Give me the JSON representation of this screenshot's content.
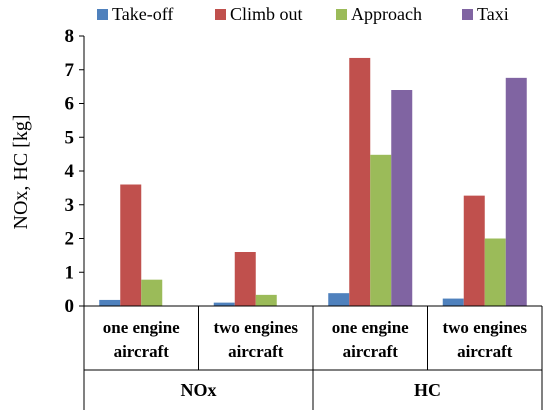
{
  "chart_data": {
    "type": "bar",
    "ylabel": "NOx, HC [kg]",
    "ylim": [
      0,
      8
    ],
    "yticks": [
      "0",
      "1",
      "2",
      "3",
      "4",
      "5",
      "6",
      "7",
      "8"
    ],
    "grid": false,
    "legend_position": "top",
    "categories": [
      [
        "one engine",
        "aircraft"
      ],
      [
        "two engines",
        "aircraft"
      ],
      [
        "one engine",
        "aircraft"
      ],
      [
        "two engines",
        "aircraft"
      ]
    ],
    "groups": [
      {
        "label": "NOx",
        "categories": [
          0,
          1
        ]
      },
      {
        "label": "HC",
        "categories": [
          2,
          3
        ]
      }
    ],
    "series": [
      {
        "name": "Take-off",
        "color": "#4F81BD",
        "values": [
          0.18,
          0.1,
          0.38,
          0.22
        ]
      },
      {
        "name": "Climb out",
        "color": "#C0504D",
        "values": [
          3.6,
          1.6,
          7.35,
          3.27
        ]
      },
      {
        "name": "Approach",
        "color": "#9BBB59",
        "values": [
          0.78,
          0.33,
          4.48,
          2.0
        ]
      },
      {
        "name": "Taxi",
        "color": "#8064A2",
        "values": [
          0,
          0,
          6.4,
          6.76
        ]
      }
    ]
  }
}
